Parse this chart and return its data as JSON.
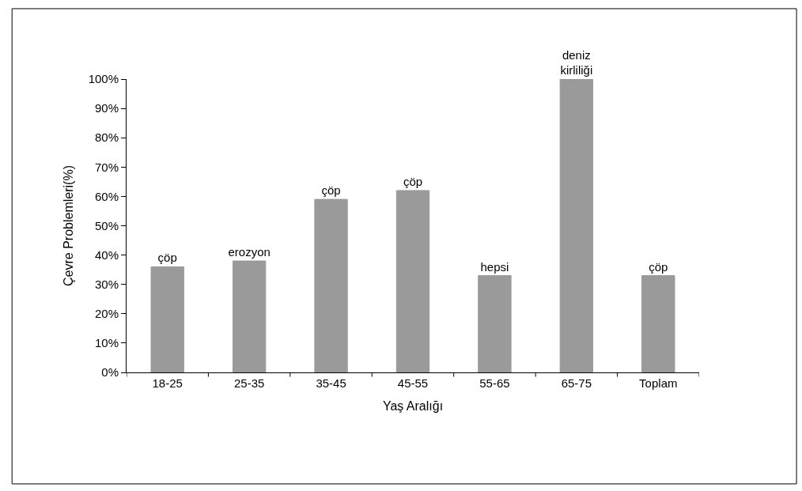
{
  "chart_data": {
    "type": "bar",
    "xlabel": "Yaş Aralığı",
    "ylabel": "Çevre Problemleri(%)",
    "categories": [
      "18-25",
      "25-35",
      "35-45",
      "45-55",
      "55-65",
      "65-75",
      "Toplam"
    ],
    "values": [
      36,
      38,
      59,
      62,
      33,
      100,
      33
    ],
    "value_labels": [
      "çöp",
      "erozyon",
      "çöp",
      "çöp",
      "hepsi",
      "deniz\nkirliliği",
      "çöp"
    ],
    "color": "#9a9a9a",
    "ylim": [
      0,
      100
    ],
    "yticks": [
      {
        "value": 0,
        "label": "0%"
      },
      {
        "value": 10,
        "label": "10%"
      },
      {
        "value": 20,
        "label": "20%"
      },
      {
        "value": 30,
        "label": "30%"
      },
      {
        "value": 40,
        "label": "40%"
      },
      {
        "value": 50,
        "label": "50%"
      },
      {
        "value": 60,
        "label": "60%"
      },
      {
        "value": 70,
        "label": "70%"
      },
      {
        "value": 80,
        "label": "80%"
      },
      {
        "value": 90,
        "label": "90%"
      },
      {
        "value": 100,
        "label": "100%"
      }
    ],
    "grid": false
  }
}
